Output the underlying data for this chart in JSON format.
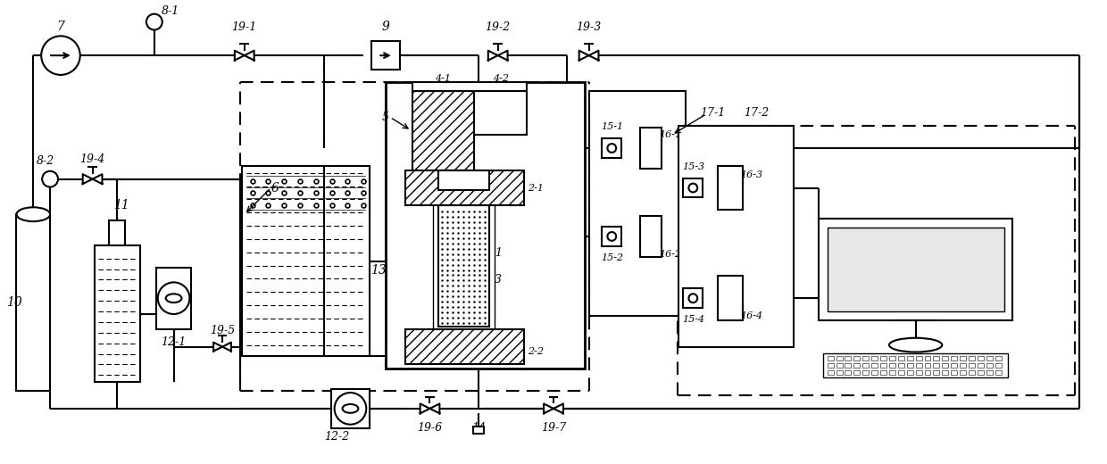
{
  "bg_color": "#ffffff",
  "lc": "#000000",
  "lw": 1.5,
  "fig_w": 12.4,
  "fig_h": 5.2
}
